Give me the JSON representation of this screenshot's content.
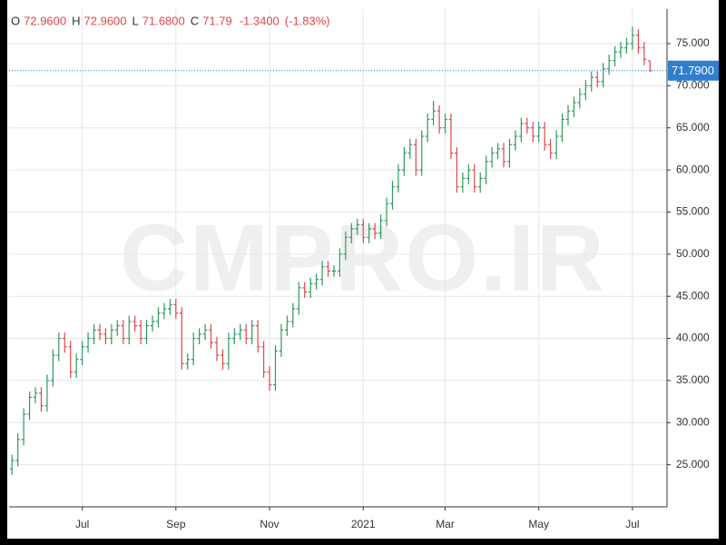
{
  "chart_data": {
    "type": "ohlc",
    "watermark": "CMPRO.IR",
    "header": [
      {
        "key": "O",
        "value": "72.9600"
      },
      {
        "key": "H",
        "value": "72.9600"
      },
      {
        "key": "L",
        "value": "71.6800"
      },
      {
        "key": "C",
        "value": "71.79"
      }
    ],
    "change": "-1.3400",
    "change_percent": "(-1.83%)",
    "last_price": {
      "value": 71.79,
      "label": "71.7900"
    },
    "last_price_color": "#2f7fd0",
    "up_color": "#2f9a5e",
    "down_color": "#e0474c",
    "grid": true,
    "ylim": [
      20,
      79.1
    ],
    "yticks": [
      {
        "value": 25,
        "label": "25.000"
      },
      {
        "value": 30,
        "label": "30.000"
      },
      {
        "value": 35,
        "label": "35.000"
      },
      {
        "value": 40,
        "label": "40.000"
      },
      {
        "value": 45,
        "label": "45.000"
      },
      {
        "value": 50,
        "label": "50.000"
      },
      {
        "value": 55,
        "label": "55.000"
      },
      {
        "value": 60,
        "label": "60.000"
      },
      {
        "value": 65,
        "label": "65.000"
      },
      {
        "value": 70,
        "label": "70.000"
      },
      {
        "value": 75,
        "label": "75.000"
      }
    ],
    "categories": [
      null,
      null,
      null,
      null,
      null,
      null,
      null,
      null,
      null,
      null,
      null,
      null,
      "Jul",
      null,
      null,
      null,
      null,
      null,
      null,
      null,
      null,
      null,
      null,
      null,
      null,
      null,
      null,
      null,
      "Sep",
      null,
      null,
      null,
      null,
      null,
      null,
      null,
      null,
      null,
      null,
      null,
      null,
      null,
      null,
      null,
      "Nov",
      null,
      null,
      null,
      null,
      null,
      null,
      null,
      null,
      null,
      null,
      null,
      null,
      null,
      null,
      null,
      "2021",
      null,
      null,
      null,
      null,
      null,
      null,
      null,
      null,
      null,
      null,
      null,
      null,
      null,
      "Mar",
      null,
      null,
      null,
      null,
      null,
      null,
      null,
      null,
      null,
      null,
      null,
      null,
      null,
      null,
      null,
      "May",
      null,
      null,
      null,
      null,
      null,
      null,
      null,
      null,
      null,
      null,
      null,
      null,
      null,
      null,
      null,
      "Jul",
      null,
      null,
      null
    ],
    "open": [
      24.5,
      25.5,
      28,
      31,
      33,
      33.5,
      32,
      35,
      38,
      40,
      39,
      36,
      37.5,
      39,
      40,
      41,
      40.5,
      40,
      41,
      41.5,
      40,
      42,
      41.5,
      40,
      41.5,
      42,
      43,
      43.5,
      44,
      43,
      37,
      37.5,
      40,
      40.5,
      41,
      39.5,
      38,
      37,
      40,
      40.5,
      41,
      40,
      41.5,
      39,
      36,
      34.5,
      38.5,
      41,
      42,
      43.5,
      46,
      45.5,
      46.5,
      47,
      48.5,
      48,
      48,
      50,
      52,
      53,
      53.5,
      52,
      53,
      52.5,
      54,
      56,
      58,
      60,
      62,
      63,
      60,
      64,
      66,
      67,
      65,
      66,
      62,
      58,
      59,
      60,
      58,
      59,
      61,
      62,
      62.5,
      61,
      63,
      64,
      65.5,
      65,
      64,
      65,
      63,
      62,
      64,
      66,
      67,
      68,
      69,
      70,
      71,
      70.5,
      72,
      73,
      74,
      74.5,
      75,
      76,
      74.5,
      72.96
    ],
    "high": [
      26.2,
      28.7,
      31.7,
      33.7,
      34.2,
      34.2,
      35.7,
      38.7,
      40.7,
      40.7,
      39.7,
      38.2,
      39.7,
      40.7,
      41.7,
      41.7,
      41.2,
      41.7,
      42.2,
      42.2,
      42.7,
      42.7,
      42.2,
      42.2,
      42.7,
      43.7,
      44.2,
      44.7,
      44.7,
      43.7,
      38.2,
      40.7,
      41.2,
      41.7,
      41.7,
      40.2,
      38.7,
      40.7,
      41.2,
      41.7,
      41.7,
      42.2,
      42.2,
      39.7,
      36.7,
      39.2,
      41.7,
      42.7,
      44.2,
      46.7,
      46.7,
      47.2,
      47.7,
      49.2,
      49.2,
      48.7,
      50.7,
      52.7,
      53.7,
      54.2,
      54.2,
      53.7,
      53.7,
      54.7,
      56.7,
      58.7,
      60.7,
      62.7,
      63.7,
      63.7,
      64.7,
      66.7,
      68.2,
      67.7,
      66.7,
      66.7,
      62.7,
      59.7,
      60.7,
      60.7,
      59.7,
      61.7,
      62.7,
      63.2,
      63.2,
      63.7,
      64.7,
      66.2,
      66.2,
      65.7,
      65.7,
      65.7,
      63.7,
      64.7,
      66.7,
      67.7,
      68.7,
      69.7,
      70.7,
      71.7,
      71.7,
      72.7,
      73.7,
      74.7,
      75.2,
      75.7,
      77,
      76.7,
      75.2,
      72.96
    ],
    "low": [
      23.8,
      24.8,
      27.3,
      30.3,
      32.3,
      31.3,
      31.3,
      34.3,
      37.3,
      38.3,
      35.3,
      35.3,
      36.8,
      38.3,
      39.3,
      39.8,
      39.3,
      39.3,
      40.3,
      39.3,
      39.3,
      40.8,
      39.3,
      39.3,
      40.8,
      41.3,
      42.3,
      42.8,
      42.3,
      36.3,
      36.3,
      36.8,
      39.3,
      39.8,
      38.8,
      37.3,
      36.3,
      36.3,
      39.3,
      39.8,
      39.3,
      39.3,
      38.3,
      35.3,
      33.8,
      33.8,
      37.8,
      40.3,
      41.3,
      42.8,
      44.8,
      44.8,
      45.8,
      46.3,
      47.3,
      47.3,
      47.3,
      49.3,
      51.3,
      52.3,
      51.3,
      51.3,
      51.8,
      51.8,
      53.3,
      55.3,
      57.3,
      59.3,
      61.3,
      59.3,
      59.3,
      63.3,
      65.3,
      64.3,
      64.3,
      61.3,
      57.3,
      57.3,
      58.3,
      57.3,
      57.3,
      58.3,
      60.3,
      61.3,
      60.3,
      60.3,
      62.3,
      63.3,
      64.3,
      63.3,
      63.3,
      62.3,
      61.3,
      61.3,
      63.3,
      65.3,
      66.3,
      67.3,
      68.3,
      69.3,
      69.8,
      69.8,
      71.3,
      72.3,
      73.3,
      73.8,
      74.3,
      73.8,
      72.43,
      71.68
    ],
    "close": [
      25.5,
      28,
      31,
      33,
      33.5,
      32,
      35,
      38,
      40,
      39,
      36,
      37.5,
      39,
      40,
      41,
      40.5,
      40,
      41,
      41.5,
      40,
      42,
      41.5,
      40,
      41.5,
      42,
      43,
      43.5,
      44,
      43,
      37,
      37.5,
      40,
      40.5,
      41,
      39.5,
      38,
      37,
      40,
      40.5,
      41,
      40,
      41.5,
      39,
      36,
      34.5,
      38.5,
      41,
      42,
      43.5,
      46,
      45.5,
      46.5,
      47,
      48.5,
      48,
      48,
      50,
      52,
      53,
      53.5,
      52,
      53,
      52.5,
      54,
      56,
      58,
      60,
      62,
      63,
      60,
      64,
      66,
      67,
      65,
      66,
      62,
      58,
      59,
      60,
      58,
      59,
      61,
      62,
      62.5,
      61,
      63,
      64,
      65.5,
      65,
      64,
      65,
      63,
      62,
      64,
      66,
      67,
      68,
      69,
      70,
      71,
      70.5,
      72,
      73,
      74,
      74.5,
      75,
      76,
      74.5,
      73.13,
      71.79
    ]
  }
}
